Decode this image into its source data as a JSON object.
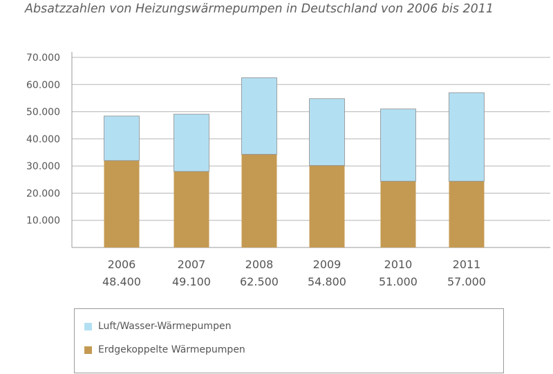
{
  "chart_data": {
    "type": "bar",
    "stacked": true,
    "title": "Absatzzahlen von Heizungswärmepumpen in Deutschland von 2006 bis 2011",
    "categories": [
      "2006",
      "2007",
      "2008",
      "2009",
      "2010",
      "2011"
    ],
    "category_totals": [
      "48.400",
      "49.100",
      "62.500",
      "54.800",
      "51.000",
      "57.000"
    ],
    "series": [
      {
        "name": "Erdgekoppelte Wärmepumpen",
        "color": "#c49a52",
        "values": [
          32000,
          28000,
          34300,
          30200,
          24400,
          24400
        ]
      },
      {
        "name": "Luft/Wasser-Wärmepumpen",
        "color": "#b3dff2",
        "values": [
          16400,
          21100,
          28200,
          24600,
          26600,
          32600
        ]
      }
    ],
    "totals": [
      48400,
      49100,
      62500,
      54800,
      51000,
      57000
    ],
    "y_ticks": [
      {
        "value": 10000,
        "label": "10.000"
      },
      {
        "value": 20000,
        "label": "20.000"
      },
      {
        "value": 30000,
        "label": "30.000"
      },
      {
        "value": 40000,
        "label": "40.000"
      },
      {
        "value": 50000,
        "label": "50.000"
      },
      {
        "value": 60000,
        "label": "60.000"
      },
      {
        "value": 70000,
        "label": "70.000"
      }
    ],
    "ylim": [
      0,
      70000
    ],
    "grid": true,
    "legend_position": "bottom"
  },
  "legend": {
    "items": [
      {
        "label": "Luft/Wasser-Wärmepumpen",
        "color": "#b3dff2"
      },
      {
        "label": "Erdgekoppelte Wärmepumpen",
        "color": "#c49a52"
      }
    ]
  }
}
